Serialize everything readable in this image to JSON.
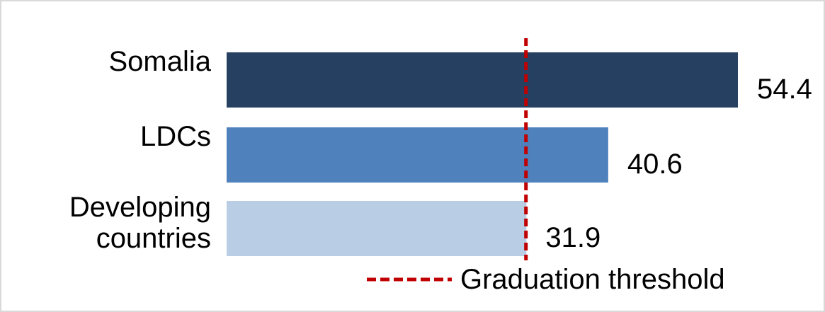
{
  "chart_data": {
    "type": "bar",
    "orientation": "horizontal",
    "categories": [
      "Somalia",
      "LDCs",
      "Developing countries"
    ],
    "values": [
      54.4,
      40.6,
      31.9
    ],
    "value_labels": [
      "54.4",
      "40.6",
      "31.9"
    ],
    "bar_colors": [
      "#264061",
      "#4f81bd",
      "#b9cde5"
    ],
    "reference_line": {
      "name": "Graduation threshold",
      "value": 32,
      "color": "#c00000",
      "style": "dashed"
    },
    "legend": {
      "position": "bottom",
      "entries": [
        "Graduation threshold"
      ]
    },
    "title": "",
    "xlabel": "",
    "ylabel": "",
    "xlim": [
      0,
      54.4
    ],
    "grid": false
  }
}
